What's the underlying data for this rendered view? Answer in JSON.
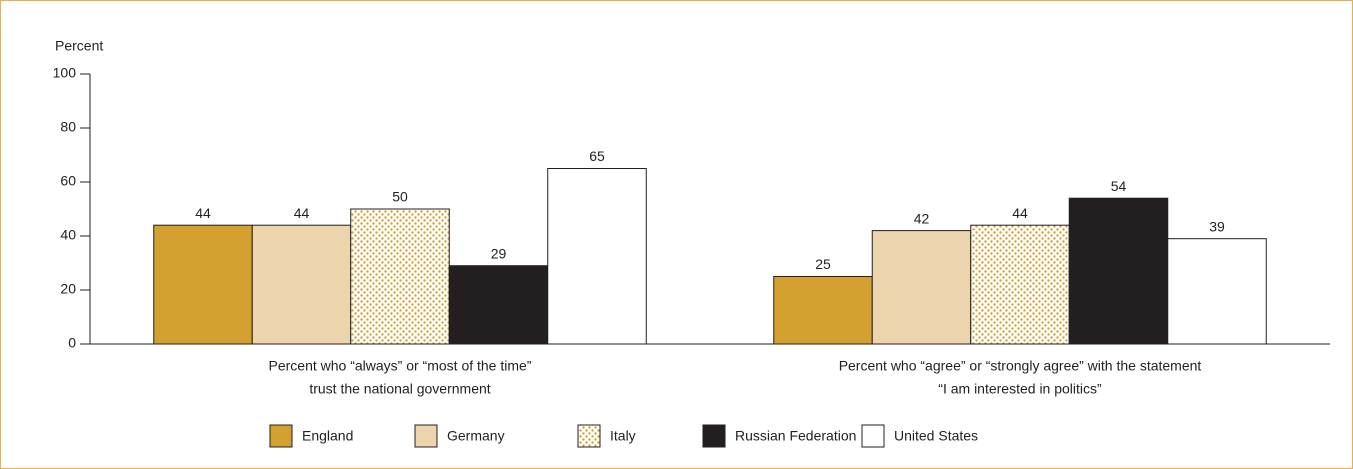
{
  "chart_data": {
    "type": "bar",
    "y_label": "Percent",
    "categories": [
      [
        "Percent who “always” or “most of the time”",
        "trust the national government"
      ],
      [
        "Percent who “agree” or “strongly agree” with the statement",
        "“I am interested in politics”"
      ]
    ],
    "series": [
      {
        "name": "England",
        "color": "#d4a030",
        "values": [
          44,
          25
        ]
      },
      {
        "name": "Germany",
        "color": "#ecd5ac",
        "values": [
          44,
          42
        ]
      },
      {
        "name": "Italy",
        "color": "#d4a030",
        "pattern": "dots",
        "values": [
          50,
          44
        ]
      },
      {
        "name": "Russian Federation",
        "color": "#231f20",
        "values": [
          29,
          54
        ]
      },
      {
        "name": "United States",
        "color": "#ffffff",
        "values": [
          65,
          39
        ]
      }
    ],
    "ylim": [
      0,
      100
    ],
    "yticks": [
      0,
      20,
      40,
      60,
      80,
      100
    ],
    "grid": false,
    "legend": "bottom"
  }
}
